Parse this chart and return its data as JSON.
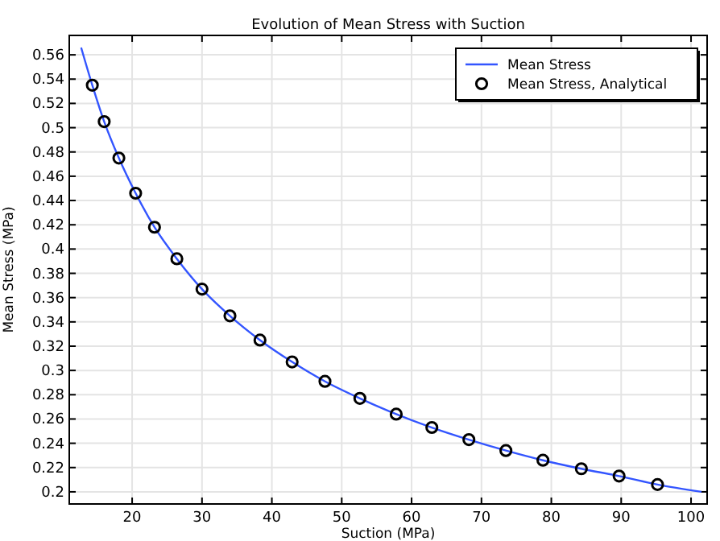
{
  "chart_data": {
    "type": "line",
    "title": "Evolution of Mean Stress with Suction",
    "xlabel": "Suction (MPa)",
    "ylabel": "Mean Stress (MPa)",
    "xlim": [
      11,
      102.3
    ],
    "ylim": [
      0.19,
      0.576
    ],
    "xticks": [
      20,
      30,
      40,
      50,
      60,
      70,
      80,
      90,
      100
    ],
    "yticks": [
      0.2,
      0.22,
      0.24,
      0.26,
      0.28,
      0.3,
      0.32,
      0.34,
      0.36,
      0.38,
      0.4,
      0.42,
      0.44,
      0.46,
      0.48,
      0.5,
      0.52,
      0.54,
      0.56
    ],
    "grid": true,
    "legend": "top right",
    "series": [
      {
        "name": "Mean Stress",
        "color": "#3355ff",
        "marker": "none",
        "line_style": "solid",
        "x": [
          12.7,
          14.3,
          16.0,
          18.1,
          20.5,
          23.2,
          26.4,
          30.0,
          34.0,
          38.3,
          42.9,
          47.6,
          52.6,
          57.8,
          62.9,
          68.2,
          73.5,
          78.8,
          84.3,
          89.7,
          95.2,
          101.5
        ],
        "values": [
          0.566,
          0.535,
          0.505,
          0.475,
          0.446,
          0.418,
          0.392,
          0.367,
          0.345,
          0.325,
          0.307,
          0.291,
          0.277,
          0.264,
          0.253,
          0.243,
          0.234,
          0.226,
          0.219,
          0.213,
          0.206,
          0.2
        ]
      },
      {
        "name": "Mean Stress, Analytical",
        "type": "scatter",
        "color": "#000000",
        "marker": "circle",
        "x": [
          14.3,
          16.0,
          18.1,
          20.5,
          23.2,
          26.4,
          30.0,
          34.0,
          38.3,
          42.9,
          47.6,
          52.6,
          57.8,
          62.9,
          68.2,
          73.5,
          78.8,
          84.3,
          89.7,
          95.2
        ],
        "values": [
          0.535,
          0.505,
          0.475,
          0.446,
          0.418,
          0.392,
          0.367,
          0.345,
          0.325,
          0.307,
          0.291,
          0.277,
          0.264,
          0.253,
          0.243,
          0.234,
          0.226,
          0.219,
          0.213,
          0.206
        ]
      }
    ]
  }
}
